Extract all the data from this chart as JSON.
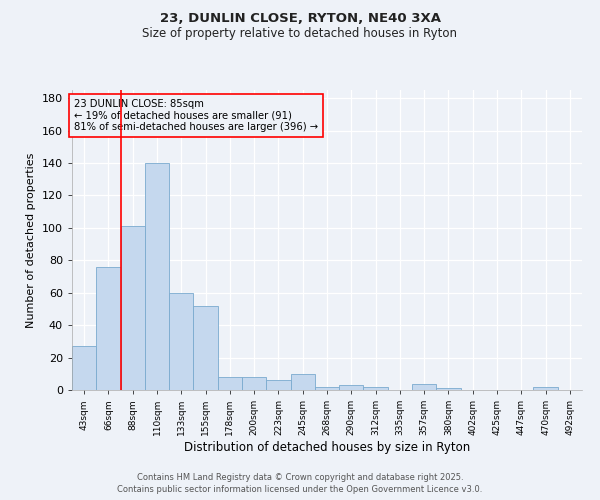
{
  "title_line1": "23, DUNLIN CLOSE, RYTON, NE40 3XA",
  "title_line2": "Size of property relative to detached houses in Ryton",
  "xlabel": "Distribution of detached houses by size in Ryton",
  "ylabel": "Number of detached properties",
  "bar_color": "#c5d8ee",
  "bar_edge_color": "#7aaacf",
  "categories": [
    "43sqm",
    "66sqm",
    "88sqm",
    "110sqm",
    "133sqm",
    "155sqm",
    "178sqm",
    "200sqm",
    "223sqm",
    "245sqm",
    "268sqm",
    "290sqm",
    "312sqm",
    "335sqm",
    "357sqm",
    "380sqm",
    "402sqm",
    "425sqm",
    "447sqm",
    "470sqm",
    "492sqm"
  ],
  "values": [
    27,
    76,
    101,
    140,
    60,
    52,
    8,
    8,
    6,
    10,
    2,
    3,
    2,
    0,
    4,
    1,
    0,
    0,
    0,
    2,
    0
  ],
  "red_line_index": 1.5,
  "annotation_text": "23 DUNLIN CLOSE: 85sqm\n← 19% of detached houses are smaller (91)\n81% of semi-detached houses are larger (396) →",
  "ylim": [
    0,
    185
  ],
  "yticks": [
    0,
    20,
    40,
    60,
    80,
    100,
    120,
    140,
    160,
    180
  ],
  "bg_color": "#eef2f8",
  "grid_color": "#ffffff",
  "footer_line1": "Contains HM Land Registry data © Crown copyright and database right 2025.",
  "footer_line2": "Contains public sector information licensed under the Open Government Licence v3.0."
}
